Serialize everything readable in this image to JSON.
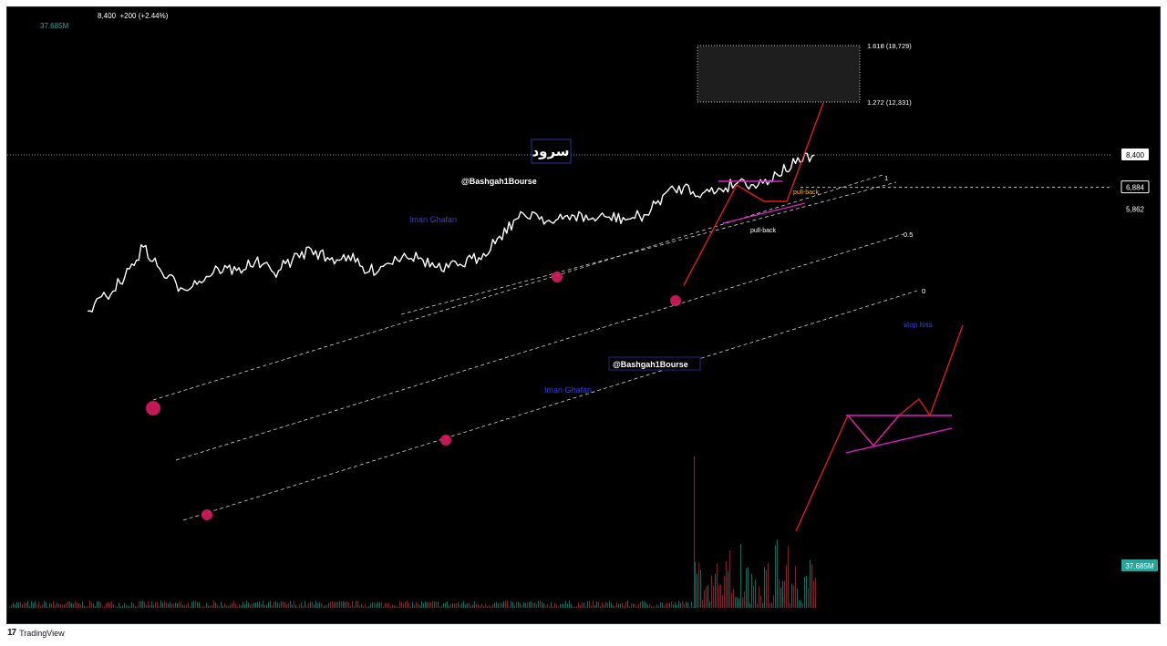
{
  "header": {
    "price": "8,400",
    "change": "+200 (+2.44%)",
    "volume": "37.685M"
  },
  "footer": {
    "brand": "TradingView"
  },
  "colors": {
    "background": "#000000",
    "price_line": "#ffffff",
    "channel": "#cfcfcf",
    "projection": "#e21b1b",
    "pattern": "#e020c8",
    "pivot": "#d81b60",
    "blue_text": "#2f3fd6",
    "volume_label": "#26a69a"
  },
  "chart_data": {
    "type": "line",
    "title": "سرود",
    "series": [
      {
        "values": [
          1100,
          1800,
          2700,
          4100,
          2900,
          2200,
          2500,
          3100,
          3000,
          3400,
          2900,
          3500,
          4000,
          3500,
          3700,
          2900,
          3300,
          3800,
          3500,
          3000,
          3300,
          3600,
          4500,
          5400,
          5700,
          5200,
          5600,
          5400,
          5500,
          5400,
          5600,
          6600,
          6900,
          6600,
          6800,
          7200,
          7000,
          7500,
          8000,
          8400
        ]
      }
    ],
    "ylabels": [
      "1.618 (18,729)",
      "1.272 (12,331)"
    ],
    "price_labels": [
      {
        "value": 8400,
        "text": "8,400",
        "style": "current"
      },
      {
        "value": 6884,
        "text": "6,884",
        "style": "level"
      },
      {
        "value": 5862,
        "text": "5,862",
        "style": "plain"
      }
    ],
    "volume_label": "37.685M",
    "fib_levels": [
      "1",
      "0.5",
      "0"
    ],
    "annotations": {
      "title": "سرود",
      "watermark_handle": "@Bashgah1Bourse",
      "author": "Iman Ghafari",
      "pull_back_upper": "pull-back",
      "pull_back_lower": "pull-back",
      "stop_loss": "stop loss"
    },
    "grid": false
  }
}
